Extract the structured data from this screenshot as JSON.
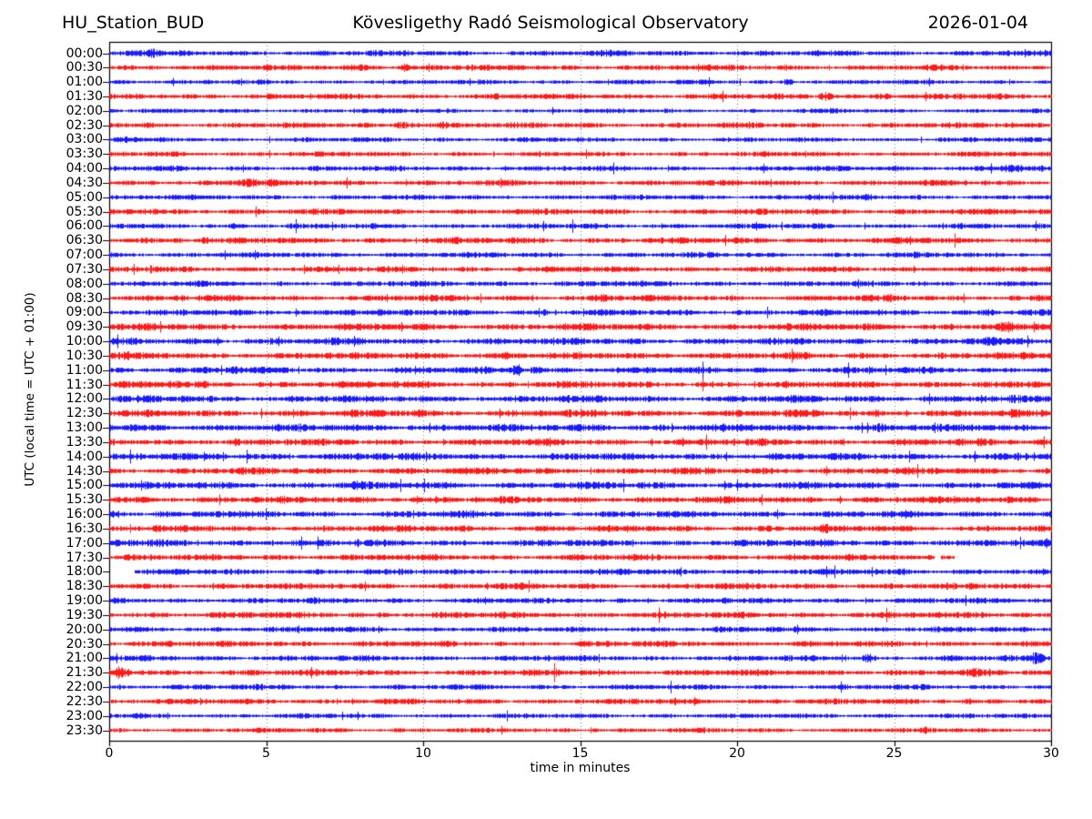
{
  "header": {
    "station_label": "HU_Station_BUD",
    "observatory_title": "Kövesligethy Radó Seismological Observatory",
    "date_label": "2026-01-04"
  },
  "axes": {
    "xlabel": "time in minutes",
    "ylabel": "UTC (local time = UTC + 01:00)",
    "x_ticks": [
      0,
      5,
      10,
      15,
      20,
      25,
      30
    ],
    "x_range": [
      0,
      30
    ],
    "grid": "vertical dotted lines every 5 minutes"
  },
  "colors": {
    "trace_blue": "#0000ff",
    "trace_red": "#ff0000",
    "grid": "#555555",
    "axis": "#000000",
    "background": "#ffffff"
  },
  "chart_data": {
    "type": "line",
    "subtype": "helicorder-dayplot",
    "title": "Kövesligethy Radó Seismological Observatory",
    "station": "HU_Station_BUD",
    "date": "2026-01-04",
    "xlabel": "time in minutes",
    "ylabel": "UTC (local time = UTC + 01:00)",
    "xlim": [
      0,
      30
    ],
    "minutes_per_row": 30,
    "row_color_rule": "rows starting on the hour are blue, half-hour rows are red",
    "categories": [
      "00:00",
      "00:30",
      "01:00",
      "01:30",
      "02:00",
      "02:30",
      "03:00",
      "03:30",
      "04:00",
      "04:30",
      "05:00",
      "05:30",
      "06:00",
      "06:30",
      "07:00",
      "07:30",
      "08:00",
      "08:30",
      "09:00",
      "09:30",
      "10:00",
      "10:30",
      "11:00",
      "11:30",
      "12:00",
      "12:30",
      "13:00",
      "13:30",
      "14:00",
      "14:30",
      "15:00",
      "15:30",
      "16:00",
      "16:30",
      "17:00",
      "17:30",
      "18:00",
      "18:30",
      "19:00",
      "19:30",
      "20:00",
      "20:30",
      "21:00",
      "21:30",
      "22:00",
      "22:30",
      "23:00",
      "23:30"
    ],
    "traces": [
      {
        "time": "00:00",
        "color": "blue",
        "amp": 1.0,
        "events": [
          {
            "t": 1.2,
            "a": 1.6,
            "w": 2.0
          },
          {
            "t": 16.0,
            "a": 1.3,
            "w": 1.0
          },
          {
            "t": 28.5,
            "a": 1.5,
            "w": 0.8
          }
        ]
      },
      {
        "time": "00:30",
        "color": "red",
        "amp": 1.0,
        "events": [
          {
            "t": 8.0,
            "a": 1.7,
            "w": 1.5
          },
          {
            "t": 9.4,
            "a": 2.3,
            "w": 0.5
          },
          {
            "t": 11.5,
            "a": 1.5,
            "w": 0.8
          },
          {
            "t": 21.5,
            "a": 1.4,
            "w": 0.6
          }
        ]
      },
      {
        "time": "01:00",
        "color": "blue",
        "amp": 0.85,
        "events": [
          {
            "t": 21.6,
            "a": 1.9,
            "w": 0.5
          },
          {
            "t": 28.3,
            "a": 1.5,
            "w": 0.7
          }
        ]
      },
      {
        "time": "01:30",
        "color": "red",
        "amp": 1.0,
        "events": [
          {
            "t": 22.8,
            "a": 2.2,
            "w": 0.7
          },
          {
            "t": 24.6,
            "a": 1.8,
            "w": 1.2
          },
          {
            "t": 27.0,
            "a": 1.4,
            "w": 1.0
          }
        ]
      },
      {
        "time": "02:00",
        "color": "blue",
        "amp": 0.8,
        "events": [
          {
            "t": 23.0,
            "a": 1.3,
            "w": 0.8
          }
        ]
      },
      {
        "time": "02:30",
        "color": "red",
        "amp": 1.0,
        "events": [
          {
            "t": 9.5,
            "a": 2.6,
            "w": 0.9
          },
          {
            "t": 10.6,
            "a": 1.8,
            "w": 0.6
          }
        ]
      },
      {
        "time": "03:00",
        "color": "blue",
        "amp": 0.85,
        "events": [
          {
            "t": 0.5,
            "a": 1.8,
            "w": 0.8
          }
        ]
      },
      {
        "time": "03:30",
        "color": "red",
        "amp": 0.9,
        "events": []
      },
      {
        "time": "04:00",
        "color": "blue",
        "amp": 0.95,
        "events": [
          {
            "t": 5.3,
            "a": 1.3,
            "w": 0.5
          },
          {
            "t": 25.0,
            "a": 1.5,
            "w": 0.7
          },
          {
            "t": 28.8,
            "a": 1.8,
            "w": 1.6
          }
        ]
      },
      {
        "time": "04:30",
        "color": "red",
        "amp": 1.0,
        "events": [
          {
            "t": 4.4,
            "a": 2.2,
            "w": 0.8
          },
          {
            "t": 5.2,
            "a": 1.5,
            "w": 0.5
          }
        ]
      },
      {
        "time": "05:00",
        "color": "blue",
        "amp": 0.9,
        "events": [
          {
            "t": 22.3,
            "a": 1.6,
            "w": 1.0
          },
          {
            "t": 24.2,
            "a": 1.4,
            "w": 0.6
          }
        ]
      },
      {
        "time": "05:30",
        "color": "red",
        "amp": 1.05,
        "events": [
          {
            "t": 1.5,
            "a": 1.3,
            "w": 1.0
          }
        ]
      },
      {
        "time": "06:00",
        "color": "blue",
        "amp": 0.95,
        "events": [
          {
            "t": 4.0,
            "a": 1.3,
            "w": 0.6
          }
        ]
      },
      {
        "time": "06:30",
        "color": "red",
        "amp": 1.1,
        "events": [
          {
            "t": 1.0,
            "a": 1.5,
            "w": 1.5
          },
          {
            "t": 3.0,
            "a": 1.4,
            "w": 1.0
          }
        ]
      },
      {
        "time": "07:00",
        "color": "blue",
        "amp": 0.95,
        "events": [
          {
            "t": 19.2,
            "a": 1.6,
            "w": 0.5
          },
          {
            "t": 29.0,
            "a": 1.3,
            "w": 0.8
          }
        ]
      },
      {
        "time": "07:30",
        "color": "red",
        "amp": 1.05,
        "events": []
      },
      {
        "time": "08:00",
        "color": "blue",
        "amp": 1.0,
        "events": [
          {
            "t": 15.8,
            "a": 1.3,
            "w": 0.6
          }
        ]
      },
      {
        "time": "08:30",
        "color": "red",
        "amp": 1.1,
        "events": [
          {
            "t": 15.8,
            "a": 1.5,
            "w": 0.8
          },
          {
            "t": 24.8,
            "a": 1.4,
            "w": 0.6
          }
        ]
      },
      {
        "time": "09:00",
        "color": "blue",
        "amp": 1.1,
        "events": [
          {
            "t": 7.5,
            "a": 1.4,
            "w": 1.2
          },
          {
            "t": 13.8,
            "a": 1.3,
            "w": 0.6
          },
          {
            "t": 28.0,
            "a": 1.4,
            "w": 1.5
          }
        ]
      },
      {
        "time": "09:30",
        "color": "red",
        "amp": 1.25,
        "events": [
          {
            "t": 18.5,
            "a": 1.4,
            "w": 0.7
          },
          {
            "t": 28.5,
            "a": 1.5,
            "w": 1.2
          },
          {
            "t": 30.0,
            "a": 1.6,
            "w": 0.5
          }
        ]
      },
      {
        "time": "10:00",
        "color": "blue",
        "amp": 1.2,
        "events": [
          {
            "t": 28.0,
            "a": 1.3,
            "w": 1.0
          }
        ]
      },
      {
        "time": "10:30",
        "color": "red",
        "amp": 1.2,
        "events": [
          {
            "t": 0.5,
            "a": 1.4,
            "w": 0.8
          },
          {
            "t": 12.6,
            "a": 1.5,
            "w": 0.6
          }
        ]
      },
      {
        "time": "11:00",
        "color": "blue",
        "amp": 1.15,
        "events": [
          {
            "t": 4.0,
            "a": 1.3,
            "w": 1.5
          },
          {
            "t": 13.0,
            "a": 2.8,
            "w": 0.45
          },
          {
            "t": 13.6,
            "a": 1.7,
            "w": 0.8
          }
        ]
      },
      {
        "time": "11:30",
        "color": "red",
        "amp": 1.2,
        "events": [
          {
            "t": 2.0,
            "a": 1.4,
            "w": 1.0
          }
        ]
      },
      {
        "time": "12:00",
        "color": "blue",
        "amp": 1.25,
        "events": [
          {
            "t": 2.5,
            "a": 1.4,
            "w": 1.0
          },
          {
            "t": 10.0,
            "a": 1.3,
            "w": 0.8
          },
          {
            "t": 26.0,
            "a": 1.4,
            "w": 0.7
          }
        ]
      },
      {
        "time": "12:30",
        "color": "red",
        "amp": 1.25,
        "events": [
          {
            "t": 9.8,
            "a": 1.8,
            "w": 0.6
          },
          {
            "t": 24.5,
            "a": 1.4,
            "w": 0.8
          }
        ]
      },
      {
        "time": "13:00",
        "color": "blue",
        "amp": 1.3,
        "events": [
          {
            "t": 15.5,
            "a": 1.5,
            "w": 0.8
          },
          {
            "t": 24.5,
            "a": 1.5,
            "w": 0.8
          }
        ]
      },
      {
        "time": "13:30",
        "color": "red",
        "amp": 1.2,
        "events": [
          {
            "t": 4.0,
            "a": 1.3,
            "w": 0.8
          }
        ]
      },
      {
        "time": "14:00",
        "color": "blue",
        "amp": 1.25,
        "events": [
          {
            "t": 8.5,
            "a": 1.3,
            "w": 0.8
          },
          {
            "t": 29.0,
            "a": 1.4,
            "w": 0.8
          }
        ]
      },
      {
        "time": "14:30",
        "color": "red",
        "amp": 1.2,
        "events": [
          {
            "t": 13.0,
            "a": 1.3,
            "w": 0.8
          }
        ]
      },
      {
        "time": "15:00",
        "color": "blue",
        "amp": 1.25,
        "events": [
          {
            "t": 7.8,
            "a": 1.4,
            "w": 1.0
          }
        ]
      },
      {
        "time": "15:30",
        "color": "red",
        "amp": 1.2,
        "events": [
          {
            "t": 0.5,
            "a": 1.4,
            "w": 0.5
          },
          {
            "t": 9.8,
            "a": 1.7,
            "w": 0.5
          }
        ]
      },
      {
        "time": "16:00",
        "color": "blue",
        "amp": 1.2,
        "events": [
          {
            "t": 1.5,
            "a": 1.3,
            "w": 1.0
          }
        ]
      },
      {
        "time": "16:30",
        "color": "red",
        "amp": 1.15,
        "events": [
          {
            "t": 22.8,
            "a": 1.4,
            "w": 0.7
          }
        ]
      },
      {
        "time": "17:00",
        "color": "blue",
        "amp": 1.2,
        "events": [
          {
            "t": 0.3,
            "a": 1.5,
            "w": 0.5
          }
        ]
      },
      {
        "time": "17:30",
        "color": "red",
        "amp": 1.1,
        "segments": [
          [
            0,
            26.25
          ],
          [
            26.5,
            26.9
          ]
        ],
        "events": [
          {
            "t": 25.0,
            "a": 1.3,
            "w": 0.6
          }
        ]
      },
      {
        "time": "18:00",
        "color": "blue",
        "amp": 1.05,
        "segments": [
          [
            0.8,
            30
          ]
        ],
        "events": [
          {
            "t": 19.5,
            "a": 1.4,
            "w": 0.7
          }
        ]
      },
      {
        "time": "18:30",
        "color": "red",
        "amp": 1.1,
        "events": [
          {
            "t": 9.0,
            "a": 1.3,
            "w": 0.8
          }
        ]
      },
      {
        "time": "19:00",
        "color": "blue",
        "amp": 1.0,
        "events": [
          {
            "t": 12.0,
            "a": 1.4,
            "w": 0.8
          },
          {
            "t": 19.5,
            "a": 1.3,
            "w": 0.6
          }
        ]
      },
      {
        "time": "19:30",
        "color": "red",
        "amp": 1.1,
        "events": [
          {
            "t": 12.5,
            "a": 1.3,
            "w": 0.6
          },
          {
            "t": 27.8,
            "a": 1.6,
            "w": 1.0
          }
        ]
      },
      {
        "time": "20:00",
        "color": "blue",
        "amp": 1.0,
        "events": [
          {
            "t": 6.5,
            "a": 1.4,
            "w": 0.8
          },
          {
            "t": 23.0,
            "a": 1.3,
            "w": 0.6
          }
        ]
      },
      {
        "time": "20:30",
        "color": "red",
        "amp": 1.05,
        "events": [
          {
            "t": 5.0,
            "a": 1.3,
            "w": 0.8
          }
        ]
      },
      {
        "time": "21:00",
        "color": "blue",
        "amp": 1.0,
        "events": [
          {
            "t": 14.0,
            "a": 1.4,
            "w": 0.8
          },
          {
            "t": 24.2,
            "a": 1.8,
            "w": 0.6
          },
          {
            "t": 29.6,
            "a": 2.3,
            "w": 0.8
          }
        ]
      },
      {
        "time": "21:30",
        "color": "red",
        "amp": 1.1,
        "events": [
          {
            "t": 0.4,
            "a": 2.2,
            "w": 0.8
          },
          {
            "t": 14.3,
            "a": 1.5,
            "w": 0.6
          },
          {
            "t": 19.0,
            "a": 1.4,
            "w": 0.7
          },
          {
            "t": 27.5,
            "a": 1.4,
            "w": 1.0
          }
        ]
      },
      {
        "time": "22:00",
        "color": "blue",
        "amp": 0.95,
        "events": [
          {
            "t": 5.5,
            "a": 1.3,
            "w": 0.8
          }
        ]
      },
      {
        "time": "22:30",
        "color": "red",
        "amp": 1.0,
        "events": [
          {
            "t": 18.0,
            "a": 1.6,
            "w": 0.6
          },
          {
            "t": 27.3,
            "a": 1.7,
            "w": 0.5
          }
        ]
      },
      {
        "time": "23:00",
        "color": "blue",
        "amp": 0.85,
        "events": [
          {
            "t": 1.0,
            "a": 1.3,
            "w": 0.8
          },
          {
            "t": 17.8,
            "a": 1.5,
            "w": 0.5
          }
        ]
      },
      {
        "time": "23:30",
        "color": "red",
        "amp": 0.85,
        "events": [
          {
            "t": 15.5,
            "a": 1.5,
            "w": 0.5
          },
          {
            "t": 21.0,
            "a": 1.2,
            "w": 0.5
          },
          {
            "t": 26.0,
            "a": 1.3,
            "w": 0.6
          }
        ]
      }
    ]
  }
}
